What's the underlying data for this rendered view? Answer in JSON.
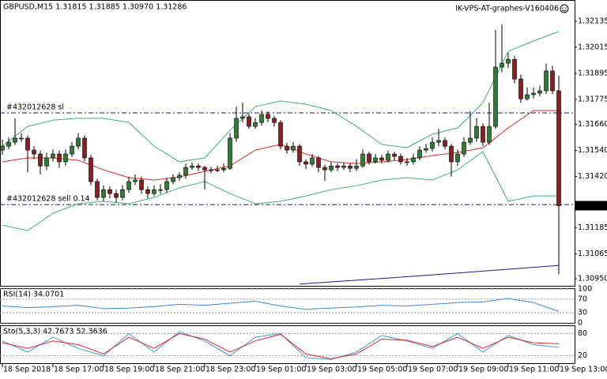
{
  "chart_data": {
    "type": "candlestick",
    "header": "GBPUSD,M15  1.31815 1.31885 1.30970 1.31286",
    "watermark": "IK-VPS-AT-graphes-V160406",
    "categories": [
      "18 Sep 2018",
      null,
      null,
      null,
      null,
      null,
      null,
      null,
      "18 Sep 17:00",
      null,
      null,
      null,
      null,
      null,
      null,
      null,
      "18 Sep 19:00",
      null,
      null,
      null,
      null,
      null,
      null,
      null,
      "18 Sep 21:00",
      null,
      null,
      null,
      null,
      null,
      null,
      null,
      "18 Sep 23:00",
      null,
      null,
      null,
      null,
      null,
      null,
      null,
      "19 Sep 01:00",
      null,
      null,
      null,
      null,
      null,
      null,
      null,
      "19 Sep 03:00",
      null,
      null,
      null,
      null,
      null,
      null,
      null,
      "19 Sep 05:00",
      null,
      null,
      null,
      null,
      null,
      null,
      null,
      "19 Sep 07:00",
      null,
      null,
      null,
      null,
      null,
      null,
      null,
      "19 Sep 09:00",
      null,
      null,
      null,
      null,
      null,
      null,
      null,
      "19 Sep 11:00",
      null,
      null,
      null,
      null,
      null,
      null,
      null,
      "19 Sep 13:00"
    ],
    "open": [
      1.31542,
      1.3156,
      1.31578,
      1.31597,
      1.31597,
      1.31542,
      1.31524,
      1.31469,
      1.31506,
      1.31524,
      1.31488,
      1.31524,
      1.3156,
      1.31597,
      1.31506,
      1.31397,
      1.31324,
      1.3136,
      1.31342,
      1.31324,
      1.3136,
      1.31397,
      1.31404,
      1.3136,
      1.31342,
      1.3136,
      1.3136,
      1.31397,
      1.31415,
      1.31426,
      1.31462,
      1.31469,
      1.31462,
      1.31451,
      1.31451,
      1.31451,
      1.31458,
      1.31597,
      1.31688,
      1.31695,
      1.31651,
      1.31669,
      1.31706,
      1.31688,
      1.31669,
      1.3156,
      1.31542,
      1.3156,
      1.31488,
      1.31477,
      1.31506,
      1.31462,
      1.31451,
      1.31469,
      1.31462,
      1.31469,
      1.31458,
      1.31469,
      1.31524,
      1.31488,
      1.31506,
      1.31495,
      1.31524,
      1.31513,
      1.31488,
      1.31488,
      1.31506,
      1.31542,
      1.31549,
      1.31578,
      1.31586,
      1.3156,
      1.31488,
      1.31524,
      1.31578,
      1.31597,
      1.31651,
      1.31578,
      1.31651,
      1.31924,
      1.31942,
      1.3196,
      1.31869,
      1.31778,
      1.31797,
      1.31804,
      1.31815,
      1.31906,
      1.31815
    ],
    "high": [
      1.3159,
      1.316,
      1.31688,
      1.3162,
      1.3161,
      1.3156,
      1.3154,
      1.3153,
      1.31545,
      1.3154,
      1.31545,
      1.3158,
      1.3162,
      1.3161,
      1.3152,
      1.3141,
      1.3138,
      1.31375,
      1.3136,
      1.3138,
      1.3142,
      1.3143,
      1.3142,
      1.31375,
      1.3138,
      1.31385,
      1.31415,
      1.3143,
      1.3144,
      1.3148,
      1.31485,
      1.3148,
      1.3147,
      1.31465,
      1.3147,
      1.3148,
      1.3162,
      1.31742,
      1.3176,
      1.3171,
      1.3169,
      1.31725,
      1.3172,
      1.317,
      1.3168,
      1.31575,
      1.3158,
      1.3157,
      1.315,
      1.31525,
      1.31515,
      1.31475,
      1.31485,
      1.3148,
      1.31485,
      1.3148,
      1.315,
      1.31545,
      1.31535,
      1.31525,
      1.3152,
      1.3154,
      1.31535,
      1.31525,
      1.31505,
      1.31525,
      1.3156,
      1.3157,
      1.316,
      1.3164,
      1.316,
      1.3157,
      1.31545,
      1.316,
      1.3172,
      1.3169,
      1.31665,
      1.3176,
      1.32095,
      1.3212,
      1.3199,
      1.31975,
      1.3189,
      1.3183,
      1.3183,
      1.3184,
      1.3194,
      1.3193,
      1.31885
    ],
    "low": [
      1.3152,
      1.31545,
      1.31565,
      1.3158,
      1.3144,
      1.315,
      1.3143,
      1.3145,
      1.3149,
      1.3146,
      1.3147,
      1.3151,
      1.31545,
      1.3149,
      1.3138,
      1.3131,
      1.31305,
      1.3132,
      1.313,
      1.3131,
      1.31345,
      1.3138,
      1.3134,
      1.3132,
      1.3133,
      1.3134,
      1.31345,
      1.31385,
      1.314,
      1.3141,
      1.3145,
      1.31445,
      1.3136,
      1.31435,
      1.3144,
      1.3144,
      1.3145,
      1.3158,
      1.3167,
      1.3164,
      1.3164,
      1.31655,
      1.3167,
      1.3165,
      1.31545,
      1.31525,
      1.3153,
      1.3147,
      1.31455,
      1.31465,
      1.3144,
      1.314,
      1.3144,
      1.31445,
      1.3145,
      1.3144,
      1.31445,
      1.3146,
      1.31475,
      1.3148,
      1.3148,
      1.31485,
      1.31495,
      1.31475,
      1.3147,
      1.31475,
      1.31495,
      1.3153,
      1.31535,
      1.3156,
      1.31545,
      1.3142,
      1.3147,
      1.3151,
      1.31565,
      1.3158,
      1.3156,
      1.31565,
      1.3164,
      1.319,
      1.3192,
      1.3185,
      1.3176,
      1.3177,
      1.3178,
      1.3179,
      1.318,
      1.318,
      1.3097
    ],
    "close": [
      1.3156,
      1.31578,
      1.31597,
      1.31597,
      1.31542,
      1.31524,
      1.31469,
      1.31506,
      1.31524,
      1.31488,
      1.31524,
      1.3156,
      1.31597,
      1.31506,
      1.31397,
      1.31324,
      1.3136,
      1.31342,
      1.31324,
      1.3136,
      1.31397,
      1.31404,
      1.3136,
      1.31342,
      1.3136,
      1.3136,
      1.31397,
      1.31415,
      1.31426,
      1.31462,
      1.31469,
      1.31462,
      1.31451,
      1.31451,
      1.31451,
      1.31458,
      1.31597,
      1.31688,
      1.31695,
      1.31651,
      1.31669,
      1.31706,
      1.31688,
      1.31669,
      1.3156,
      1.31542,
      1.3156,
      1.31488,
      1.31477,
      1.31506,
      1.31462,
      1.31451,
      1.31469,
      1.31462,
      1.31469,
      1.31458,
      1.31469,
      1.31524,
      1.31488,
      1.31506,
      1.31495,
      1.31524,
      1.31513,
      1.31488,
      1.31488,
      1.31506,
      1.31542,
      1.31549,
      1.31578,
      1.31586,
      1.3156,
      1.31488,
      1.31524,
      1.31578,
      1.31597,
      1.31651,
      1.31578,
      1.31651,
      1.31924,
      1.31942,
      1.3196,
      1.31869,
      1.31778,
      1.31797,
      1.31804,
      1.31815,
      1.31906,
      1.31815,
      1.31286
    ],
    "up_color": "#2e7d32",
    "down_color": "#8b1e1e",
    "ylim": [
      1.30917,
      1.32233
    ],
    "yticks": [
      1.32135,
      1.32015,
      1.31895,
      1.31775,
      {
        "value": 1.3166,
        "label": "1.31660"
      },
      {
        "value": 1.3154,
        "label": "1.31540"
      },
      {
        "value": 1.3142,
        "label": "1.31420"
      },
      1.31185,
      1.31065,
      {
        "value": 1.3095,
        "label": "1.30950"
      }
    ],
    "overlays": [
      {
        "color": "#e02828",
        "x": [
          0,
          4,
          8,
          12,
          16,
          20,
          24,
          28,
          32,
          36,
          40,
          44,
          48,
          52,
          56,
          60,
          64,
          68,
          72,
          76,
          80,
          84,
          88
        ],
        "values": [
          1.31488,
          1.31506,
          1.31506,
          1.31495,
          1.31451,
          1.31415,
          1.31404,
          1.31418,
          1.31444,
          1.31469,
          1.31542,
          1.31568,
          1.31524,
          1.31488,
          1.3148,
          1.31488,
          1.31498,
          1.31517,
          1.31531,
          1.31553,
          1.31644,
          1.31724,
          1.31724
        ]
      },
      {
        "color": "#3cb371",
        "x": [
          0,
          4,
          8,
          12,
          16,
          20,
          24,
          28,
          32,
          36,
          40,
          44,
          48,
          52,
          56,
          60,
          64,
          68,
          72,
          76,
          80,
          84,
          88
        ],
        "values": [
          1.3156,
          1.31651,
          1.3168,
          1.31688,
          1.31688,
          1.31669,
          1.3156,
          1.31488,
          1.31506,
          1.31633,
          1.31742,
          1.31768,
          1.31753,
          1.31724,
          1.31651,
          1.31568,
          1.31553,
          1.31615,
          1.31644,
          1.3176,
          1.31997,
          1.32044,
          1.32088
        ]
      },
      {
        "color": "#3cb371",
        "x": [
          0,
          4,
          8,
          12,
          16,
          20,
          24,
          28,
          32,
          36,
          40,
          44,
          48,
          52,
          56,
          60,
          64,
          68,
          72,
          76,
          80,
          84,
          88
        ],
        "values": [
          1.31197,
          1.31171,
          1.31251,
          1.31295,
          1.31306,
          1.31295,
          1.31324,
          1.31368,
          1.31397,
          1.31342,
          1.31295,
          1.31306,
          1.31331,
          1.3136,
          1.31378,
          1.31404,
          1.31415,
          1.31404,
          1.31451,
          1.31535,
          1.31306,
          1.31331,
          1.31331
        ]
      },
      {
        "color": "#1a1a8c",
        "x": [
          47,
          67,
          88
        ],
        "values": [
          1.30925,
          1.30965,
          1.31011
        ]
      }
    ],
    "levels": [
      {
        "label": "#432012628 sl",
        "value": 1.31713
      },
      {
        "label": "#432012628 sell 0.14",
        "value": 1.31291
      }
    ],
    "panels": [
      {
        "type": "line",
        "label": "RSI(14) 34.0701",
        "ylim": [
          0,
          100
        ],
        "yticks": [
          100,
          70,
          30,
          0
        ],
        "series": [
          {
            "color": "#3a86d4",
            "x": [
              0,
              4,
              8,
              12,
              16,
              20,
              24,
              28,
              32,
              36,
              40,
              44,
              48,
              52,
              56,
              60,
              64,
              68,
              72,
              76,
              80,
              84,
              88
            ],
            "values": [
              50,
              45,
              48,
              52,
              42,
              44,
              48,
              55,
              52,
              58,
              64,
              50,
              40,
              44,
              47,
              52,
              50,
              55,
              60,
              62,
              72,
              60,
              34.0701
            ]
          }
        ]
      },
      {
        "type": "line",
        "label": "Sto(5,3,3) 42.7673 52.3636",
        "ylim": [
          0,
          100
        ],
        "yticks": [
          80,
          20
        ],
        "series": [
          {
            "color": "#3a9ad9",
            "x": [
              0,
              4,
              8,
              12,
              16,
              20,
              24,
              28,
              32,
              36,
              40,
              44,
              48,
              52,
              56,
              60,
              64,
              68,
              72,
              76,
              80,
              84,
              88
            ],
            "values": [
              60,
              30,
              70,
              40,
              20,
              80,
              30,
              85,
              60,
              20,
              70,
              80,
              15,
              10,
              30,
              75,
              60,
              40,
              80,
              30,
              75,
              50,
              42.7673
            ]
          },
          {
            "color": "#e02828",
            "x": [
              0,
              4,
              8,
              12,
              16,
              20,
              24,
              28,
              32,
              36,
              40,
              44,
              48,
              52,
              56,
              60,
              64,
              68,
              72,
              76,
              80,
              84,
              88
            ],
            "values": [
              55,
              40,
              60,
              50,
              25,
              70,
              40,
              80,
              65,
              30,
              60,
              78,
              25,
              12,
              25,
              65,
              62,
              45,
              70,
              40,
              70,
              55,
              52.3636
            ]
          }
        ]
      }
    ]
  }
}
